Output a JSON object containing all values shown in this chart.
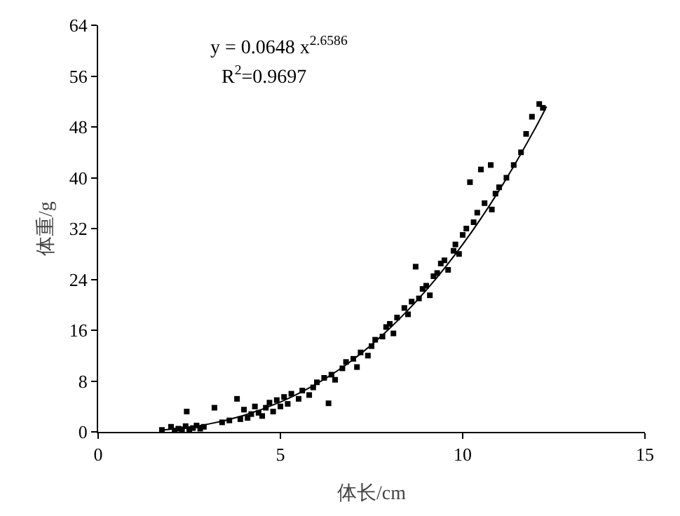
{
  "chart_data": {
    "type": "scatter",
    "xlabel": "体长/cm",
    "ylabel": "体重/g",
    "xlim": [
      0,
      15
    ],
    "xticks": [
      0,
      5,
      10,
      15
    ],
    "ylim": [
      0,
      64
    ],
    "yticks": [
      0,
      8,
      16,
      24,
      32,
      40,
      48,
      56,
      64
    ],
    "marker": "square",
    "annotations": [
      "y = 0.0648 x$^{2.6586}$",
      "R$^{2}$=0.9697"
    ],
    "series": [
      {
        "color": "#000000",
        "x": [
          1.75,
          2.0,
          2.1,
          2.2,
          2.3,
          2.4,
          2.43,
          2.5,
          2.6,
          2.7,
          2.8,
          2.9,
          3.19,
          3.4,
          3.6,
          3.81,
          3.9,
          4.0,
          4.1,
          4.2,
          4.3,
          4.4,
          4.5,
          4.6,
          4.7,
          4.8,
          4.9,
          5.0,
          5.1,
          5.2,
          5.3,
          5.5,
          5.6,
          5.79,
          5.9,
          6.0,
          6.2,
          6.32,
          6.4,
          6.5,
          6.7,
          6.8,
          7.0,
          7.1,
          7.2,
          7.4,
          7.5,
          7.6,
          7.8,
          7.9,
          8.0,
          8.1,
          8.2,
          8.4,
          8.5,
          8.6,
          8.71,
          8.8,
          8.9,
          9.0,
          9.1,
          9.2,
          9.3,
          9.4,
          9.5,
          9.6,
          9.75,
          9.8,
          9.9,
          10.0,
          10.1,
          10.2,
          10.3,
          10.4,
          10.5,
          10.6,
          10.77,
          10.8,
          10.9,
          11.0,
          11.2,
          11.4,
          11.6,
          11.74,
          11.9,
          12.1,
          12.2
        ],
        "values": [
          0.3,
          0.8,
          0.2,
          0.5,
          0.4,
          0.9,
          3.2,
          0.3,
          0.6,
          1.0,
          0.5,
          0.8,
          3.8,
          1.5,
          1.8,
          5.2,
          2.0,
          3.5,
          2.2,
          2.8,
          4.0,
          3.0,
          2.5,
          3.8,
          4.6,
          3.2,
          5.0,
          4.0,
          5.5,
          4.4,
          6.0,
          5.2,
          6.5,
          5.8,
          7.0,
          7.8,
          8.5,
          4.5,
          9.0,
          8.2,
          10.0,
          11.0,
          11.5,
          10.2,
          12.5,
          12.0,
          13.5,
          14.5,
          15.0,
          16.5,
          17.0,
          15.5,
          18.0,
          19.5,
          18.5,
          20.5,
          26.0,
          21.0,
          22.5,
          23.0,
          21.5,
          24.5,
          25.0,
          26.5,
          27.0,
          25.5,
          28.5,
          29.5,
          28.0,
          31.0,
          32.0,
          39.3,
          33.0,
          34.5,
          41.3,
          36.0,
          42.0,
          35.0,
          37.5,
          38.5,
          40.0,
          42.0,
          44.0,
          46.9,
          49.6,
          51.6,
          51.0
        ]
      },
      {
        "type": "line",
        "color": "#000000",
        "marker": "none",
        "line_style": "solid",
        "x": [
          1.8,
          3,
          4,
          5,
          6,
          7,
          8,
          9,
          10,
          11,
          12,
          12.3
        ],
        "values": [
          0.3,
          1.2,
          2.6,
          4.7,
          7.6,
          11.4,
          16.3,
          22.3,
          29.5,
          38.0,
          47.9,
          51.2
        ]
      }
    ]
  }
}
